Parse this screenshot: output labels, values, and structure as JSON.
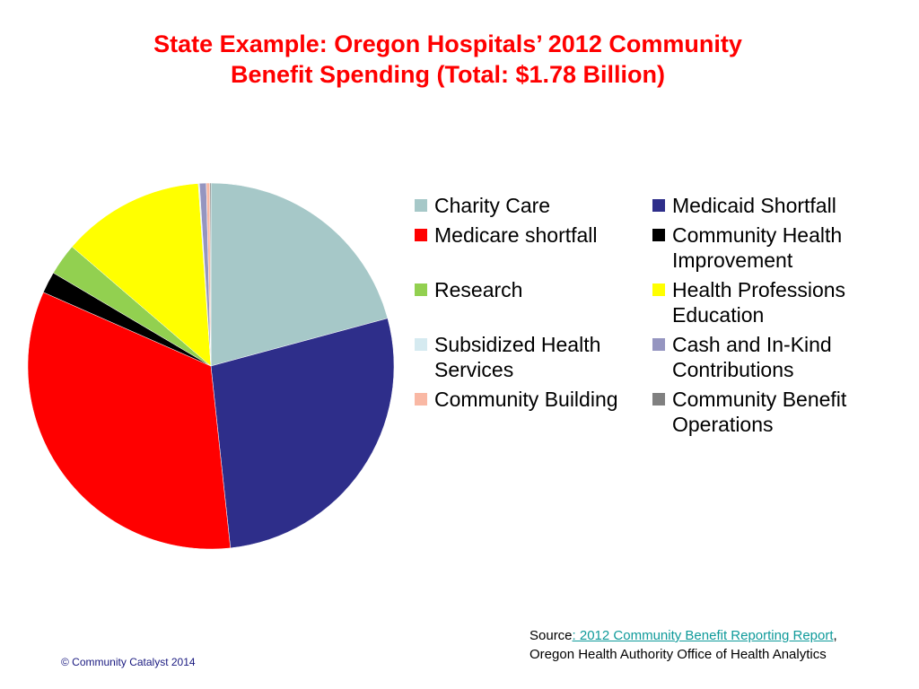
{
  "title": {
    "line1": "State Example: Oregon Hospitals’ 2012 Community",
    "line2": "Benefit Spending (Total: $1.78 Billion)"
  },
  "chart_data": {
    "type": "pie",
    "title": "State Example: Oregon Hospitals’ 2012 Community Benefit Spending (Total: $1.78 Billion)",
    "legend_position": "right",
    "slices": [
      {
        "label": "Charity Care",
        "percent": 20.8,
        "color": "#a6c8c8"
      },
      {
        "label": "Medicaid Shortfall",
        "percent": 27.5,
        "color": "#2e2e8a"
      },
      {
        "label": "Medicare shortfall",
        "percent": 33.3,
        "color": "#ff0000"
      },
      {
        "label": "Community Health Improvement",
        "percent": 1.9,
        "color": "#000000"
      },
      {
        "label": "Research",
        "percent": 2.8,
        "color": "#92d050"
      },
      {
        "label": "Health Professions Education",
        "percent": 12.6,
        "color": "#ffff00"
      },
      {
        "label": "Subsidized Health Services",
        "percent": 0.1,
        "color": "#d5eaf0"
      },
      {
        "label": "Cash and In-Kind Contributions",
        "percent": 0.6,
        "color": "#9595c0"
      },
      {
        "label": "Community Building",
        "percent": 0.3,
        "color": "#f9b8a4"
      },
      {
        "label": "Community Benefit Operations",
        "percent": 0.1,
        "color": "#808080"
      }
    ]
  },
  "legend": [
    {
      "label": "Charity Care",
      "color": "#a6c8c8"
    },
    {
      "label": "Medicaid Shortfall",
      "color": "#2e2e8a"
    },
    {
      "label": "Medicare shortfall",
      "color": "#ff0000"
    },
    {
      "label": "Community Health Improvement",
      "color": "#000000"
    },
    {
      "label": "Research",
      "color": "#92d050"
    },
    {
      "label": "Health Professions Education",
      "color": "#ffff00"
    },
    {
      "label": "Subsidized Health Services",
      "color": "#d5eaf0"
    },
    {
      "label": "Cash and In-Kind Contributions",
      "color": "#9595c0"
    },
    {
      "label": "Community Building",
      "color": "#f9b8a4"
    },
    {
      "label": "Community Benefit Operations",
      "color": "#808080"
    }
  ],
  "source": {
    "prefix": "Source",
    "link_text": ": 2012 Community Benefit Reporting Report",
    "suffix": ",",
    "line2": "Oregon Health Authority Office of Health Analytics"
  },
  "copyright": "© Community Catalyst 2014"
}
